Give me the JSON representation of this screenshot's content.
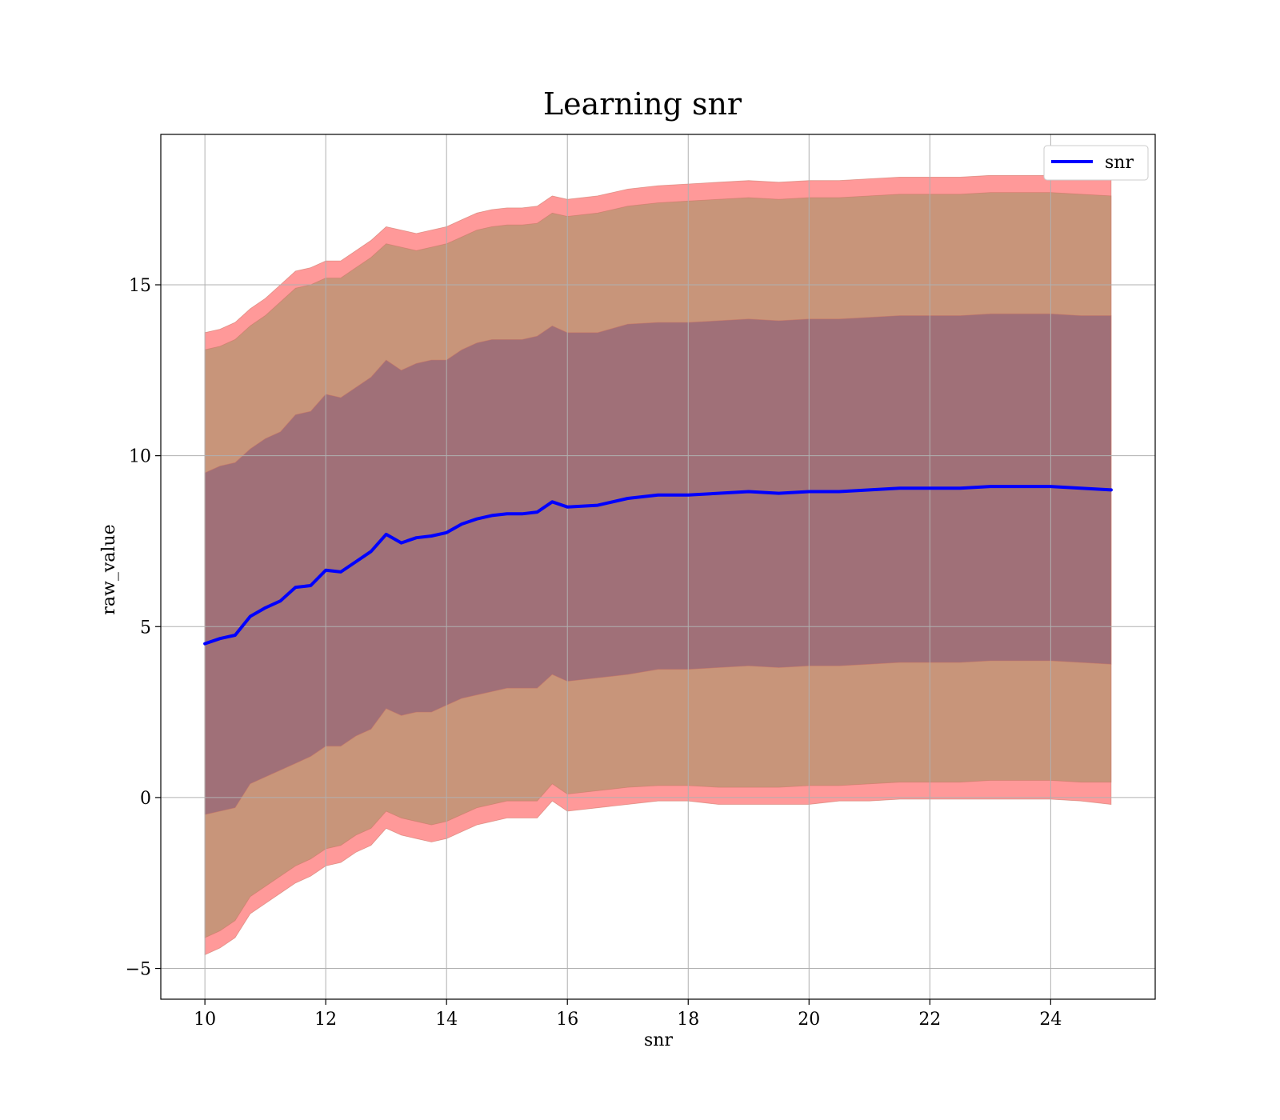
{
  "chart_data": {
    "type": "line",
    "title": "Learning snr",
    "xlabel": "snr",
    "ylabel": "raw_value",
    "xlim": [
      9.27,
      25.73
    ],
    "ylim": [
      -5.9,
      19.4
    ],
    "x_ticks": [
      10,
      12,
      14,
      16,
      18,
      20,
      22,
      24
    ],
    "y_ticks": [
      -5,
      0,
      5,
      10,
      15
    ],
    "y_tick_labels": [
      "−5",
      "0",
      "5",
      "10",
      "15"
    ],
    "grid": true,
    "legend": {
      "position": "top-right",
      "entries": [
        "snr"
      ]
    },
    "colors": {
      "line": "#0000ff",
      "band_outer": "#ff9999",
      "band_middle": "#c8957a",
      "band_inner": "#a07078",
      "grid": "#b0b0b0"
    },
    "x": [
      10,
      10.25,
      10.5,
      10.75,
      11,
      11.25,
      11.5,
      11.75,
      12,
      12.25,
      12.5,
      12.75,
      13,
      13.25,
      13.5,
      13.75,
      14,
      14.25,
      14.5,
      14.75,
      15,
      15.25,
      15.5,
      15.75,
      16,
      16.5,
      17,
      17.5,
      18,
      18.5,
      19,
      19.5,
      20,
      20.5,
      21,
      21.5,
      22,
      22.5,
      23,
      23.5,
      24,
      24.5,
      25
    ],
    "series": [
      {
        "name": "snr",
        "values": [
          4.5,
          4.65,
          4.75,
          5.3,
          5.55,
          5.75,
          6.15,
          6.2,
          6.65,
          6.6,
          6.9,
          7.2,
          7.7,
          7.45,
          7.6,
          7.65,
          7.75,
          8.0,
          8.15,
          8.25,
          8.3,
          8.3,
          8.35,
          8.65,
          8.5,
          8.55,
          8.75,
          8.85,
          8.85,
          8.9,
          8.95,
          8.9,
          8.95,
          8.95,
          9.0,
          9.05,
          9.05,
          9.05,
          9.1,
          9.1,
          9.1,
          9.05,
          9.0
        ]
      }
    ],
    "bands": [
      {
        "lower": [
          -4.6,
          -4.4,
          -4.1,
          -3.4,
          -3.1,
          -2.8,
          -2.5,
          -2.3,
          -2.0,
          -1.9,
          -1.6,
          -1.4,
          -0.9,
          -1.1,
          -1.2,
          -1.3,
          -1.2,
          -1.0,
          -0.8,
          -0.7,
          -0.6,
          -0.6,
          -0.6,
          -0.1,
          -0.4,
          -0.3,
          -0.2,
          -0.1,
          -0.1,
          -0.2,
          -0.2,
          -0.2,
          -0.2,
          -0.1,
          -0.1,
          -0.05,
          -0.05,
          -0.05,
          -0.05,
          -0.05,
          -0.05,
          -0.1,
          -0.2
        ],
        "upper": [
          13.6,
          13.7,
          13.9,
          14.3,
          14.6,
          15.0,
          15.4,
          15.5,
          15.7,
          15.7,
          16.0,
          16.3,
          16.7,
          16.6,
          16.5,
          16.6,
          16.7,
          16.9,
          17.1,
          17.2,
          17.25,
          17.25,
          17.3,
          17.6,
          17.5,
          17.6,
          17.8,
          17.9,
          17.95,
          18.0,
          18.05,
          18.0,
          18.05,
          18.05,
          18.1,
          18.15,
          18.15,
          18.15,
          18.2,
          18.2,
          18.2,
          18.15,
          18.15
        ]
      },
      {
        "lower": [
          -4.1,
          -3.9,
          -3.6,
          -2.9,
          -2.6,
          -2.3,
          -2.0,
          -1.8,
          -1.5,
          -1.4,
          -1.1,
          -0.9,
          -0.4,
          -0.6,
          -0.7,
          -0.8,
          -0.7,
          -0.5,
          -0.3,
          -0.2,
          -0.1,
          -0.1,
          -0.1,
          0.4,
          0.1,
          0.2,
          0.3,
          0.35,
          0.35,
          0.3,
          0.3,
          0.3,
          0.35,
          0.35,
          0.4,
          0.45,
          0.45,
          0.45,
          0.5,
          0.5,
          0.5,
          0.45,
          0.45
        ],
        "upper": [
          13.1,
          13.2,
          13.4,
          13.8,
          14.1,
          14.5,
          14.9,
          15.0,
          15.2,
          15.2,
          15.5,
          15.8,
          16.2,
          16.1,
          16.0,
          16.1,
          16.2,
          16.4,
          16.6,
          16.7,
          16.75,
          16.75,
          16.8,
          17.1,
          17.0,
          17.1,
          17.3,
          17.4,
          17.45,
          17.5,
          17.55,
          17.5,
          17.55,
          17.55,
          17.6,
          17.65,
          17.65,
          17.65,
          17.7,
          17.7,
          17.7,
          17.65,
          17.6
        ]
      },
      {
        "lower": [
          -0.5,
          -0.4,
          -0.3,
          0.4,
          0.6,
          0.8,
          1.0,
          1.2,
          1.5,
          1.5,
          1.8,
          2.0,
          2.6,
          2.4,
          2.5,
          2.5,
          2.7,
          2.9,
          3.0,
          3.1,
          3.2,
          3.2,
          3.2,
          3.6,
          3.4,
          3.5,
          3.6,
          3.75,
          3.75,
          3.8,
          3.85,
          3.8,
          3.85,
          3.85,
          3.9,
          3.95,
          3.95,
          3.95,
          4.0,
          4.0,
          4.0,
          3.95,
          3.9
        ],
        "upper": [
          9.5,
          9.7,
          9.8,
          10.2,
          10.5,
          10.7,
          11.2,
          11.3,
          11.8,
          11.7,
          12.0,
          12.3,
          12.8,
          12.5,
          12.7,
          12.8,
          12.8,
          13.1,
          13.3,
          13.4,
          13.4,
          13.4,
          13.5,
          13.8,
          13.6,
          13.6,
          13.85,
          13.9,
          13.9,
          13.95,
          14.0,
          13.95,
          14.0,
          14.0,
          14.05,
          14.1,
          14.1,
          14.1,
          14.15,
          14.15,
          14.15,
          14.1,
          14.1
        ]
      }
    ]
  }
}
